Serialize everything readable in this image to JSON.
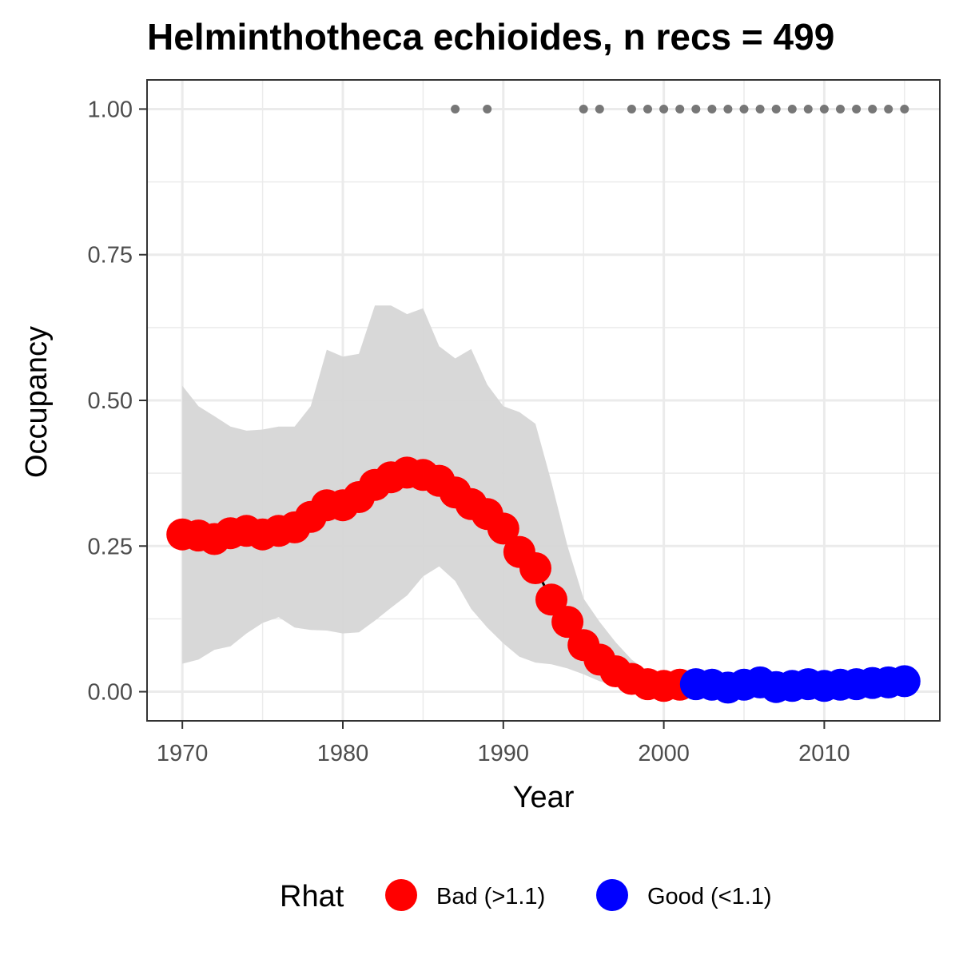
{
  "chart_data": {
    "type": "line",
    "title": "Helminthotheca echioides, n recs = 499",
    "xlabel": "Year",
    "ylabel": "Occupancy",
    "xlim": [
      1967.8,
      2017.2
    ],
    "ylim": [
      -0.05,
      1.05
    ],
    "x_ticks": [
      1970,
      1980,
      1990,
      2000,
      2010
    ],
    "y_ticks": [
      0.0,
      0.25,
      0.5,
      0.75,
      1.0
    ],
    "y_tick_labels": [
      "0.00",
      "0.25",
      "0.50",
      "0.75",
      "1.00"
    ],
    "grid": true,
    "legend": {
      "position": "bottom",
      "title": "Rhat",
      "entries": [
        {
          "label": "Bad (>1.1)",
          "color": "#ff0000"
        },
        {
          "label": "Good (<1.1)",
          "color": "#0000ff"
        }
      ]
    },
    "years": [
      1970,
      1971,
      1972,
      1973,
      1974,
      1975,
      1976,
      1977,
      1978,
      1979,
      1980,
      1981,
      1982,
      1983,
      1984,
      1985,
      1986,
      1987,
      1988,
      1989,
      1990,
      1991,
      1992,
      1993,
      1994,
      1995,
      1996,
      1997,
      1998,
      1999,
      2000,
      2001,
      2002,
      2003,
      2004,
      2005,
      2006,
      2007,
      2008,
      2009,
      2010,
      2011,
      2012,
      2013,
      2014,
      2015
    ],
    "occupancy": [
      0.27,
      0.268,
      0.262,
      0.272,
      0.276,
      0.27,
      0.276,
      0.282,
      0.3,
      0.32,
      0.32,
      0.334,
      0.355,
      0.368,
      0.376,
      0.372,
      0.362,
      0.342,
      0.322,
      0.305,
      0.28,
      0.24,
      0.212,
      0.158,
      0.12,
      0.08,
      0.055,
      0.035,
      0.022,
      0.013,
      0.01,
      0.012,
      0.013,
      0.012,
      0.007,
      0.012,
      0.016,
      0.008,
      0.01,
      0.013,
      0.01,
      0.012,
      0.013,
      0.015,
      0.016,
      0.018
    ],
    "lower_ci": [
      0.048,
      0.055,
      0.072,
      0.078,
      0.1,
      0.118,
      0.128,
      0.11,
      0.106,
      0.105,
      0.1,
      0.102,
      0.122,
      0.144,
      0.165,
      0.198,
      0.215,
      0.19,
      0.142,
      0.11,
      0.083,
      0.06,
      0.05,
      0.047,
      0.04,
      0.03,
      0.018,
      0.01,
      0.005,
      0.003,
      0.002,
      0.002,
      0.002,
      0.002,
      0.001,
      0.002,
      0.002,
      0.001,
      0.002,
      0.002,
      0.002,
      0.002,
      0.002,
      0.002,
      0.002,
      0.002
    ],
    "upper_ci": [
      0.525,
      0.49,
      0.473,
      0.455,
      0.448,
      0.45,
      0.455,
      0.455,
      0.49,
      0.587,
      0.575,
      0.58,
      0.663,
      0.663,
      0.648,
      0.658,
      0.593,
      0.572,
      0.588,
      0.527,
      0.49,
      0.48,
      0.46,
      0.36,
      0.25,
      0.16,
      0.12,
      0.085,
      0.055,
      0.035,
      0.025,
      0.025,
      0.025,
      0.022,
      0.02,
      0.022,
      0.025,
      0.02,
      0.022,
      0.025,
      0.022,
      0.024,
      0.025,
      0.028,
      0.03,
      0.032
    ],
    "rhat_status": [
      "Bad",
      "Bad",
      "Bad",
      "Bad",
      "Bad",
      "Bad",
      "Bad",
      "Bad",
      "Bad",
      "Bad",
      "Bad",
      "Bad",
      "Bad",
      "Bad",
      "Bad",
      "Bad",
      "Bad",
      "Bad",
      "Bad",
      "Bad",
      "Bad",
      "Bad",
      "Bad",
      "Bad",
      "Bad",
      "Bad",
      "Bad",
      "Bad",
      "Bad",
      "Bad",
      "Bad",
      "Bad",
      "Good",
      "Good",
      "Good",
      "Good",
      "Good",
      "Good",
      "Good",
      "Good",
      "Good",
      "Good",
      "Good",
      "Good",
      "Good",
      "Good"
    ],
    "record_years": [
      1987,
      1989,
      1995,
      1996,
      1998,
      1999,
      2000,
      2001,
      2002,
      2003,
      2004,
      2005,
      2006,
      2007,
      2008,
      2009,
      2010,
      2011,
      2012,
      2013,
      2014,
      2015
    ],
    "record_value": 1.0,
    "colors": {
      "bad": "#ff0000",
      "good": "#0000ff",
      "ribbon": "#d6d6d6",
      "records": "#777777",
      "line": "#000000",
      "grid": "#ebebeb",
      "panel_border": "#333333"
    }
  }
}
